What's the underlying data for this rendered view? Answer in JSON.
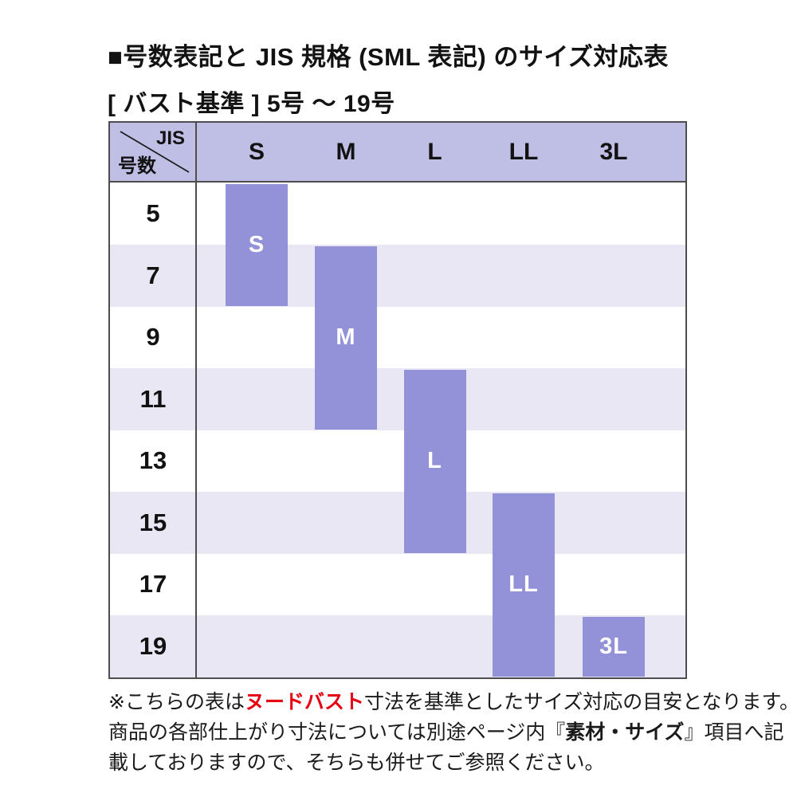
{
  "title": "■号数表記と JIS 規格 (SML 表記) のサイズ対応表",
  "subtitle": "[ バスト基準 ] 5号 ～ 19号",
  "table": {
    "corner": {
      "jis": "JIS",
      "gosu": "号数"
    },
    "columns": [
      "S",
      "M",
      "L",
      "LL",
      "3L"
    ],
    "rows": [
      "5",
      "7",
      "9",
      "11",
      "13",
      "15",
      "17",
      "19"
    ]
  },
  "chart_data": {
    "type": "table",
    "title": "号数表記と JIS 規格 (SML 表記) のサイズ対応表",
    "subtitle": "[ バスト基準 ] 5号 ～ 19号",
    "x_categories": [
      "S",
      "M",
      "L",
      "LL",
      "3L"
    ],
    "y_categories": [
      5,
      7,
      9,
      11,
      13,
      15,
      17,
      19
    ],
    "bars": [
      {
        "jis": "S",
        "sizes": [
          5,
          7
        ]
      },
      {
        "jis": "M",
        "sizes": [
          7,
          9,
          11
        ]
      },
      {
        "jis": "L",
        "sizes": [
          11,
          13,
          15
        ]
      },
      {
        "jis": "LL",
        "sizes": [
          15,
          17,
          19
        ]
      },
      {
        "jis": "3L",
        "sizes": [
          19
        ]
      }
    ],
    "legend_position": "none",
    "grid": "row-stripes"
  },
  "colors": {
    "bar": "#9391d7",
    "header_bg": "#bfbee5",
    "row_stripe": "#e9e7f3",
    "border": "#4d4d4d",
    "accent_red": "#e60012"
  },
  "note": {
    "lines": [
      [
        {
          "text": "※こちらの表は"
        },
        {
          "text": "ヌードバスト",
          "style": "red"
        },
        {
          "text": "寸法を基準としたサイズ対応の目安となります。"
        }
      ],
      [
        {
          "text": "商品の各部仕上がり寸法については別途ページ内『"
        },
        {
          "text": "素材・サイズ",
          "style": "bold"
        },
        {
          "text": "』項目へ記"
        }
      ],
      [
        {
          "text": "載しておりますので、そちらも併せてご参照ください。"
        }
      ]
    ]
  }
}
